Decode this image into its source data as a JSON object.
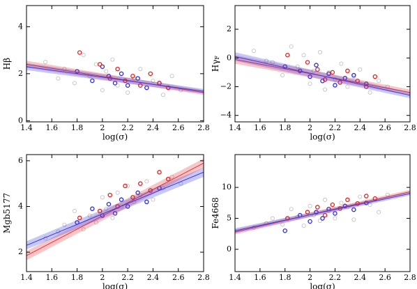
{
  "chart_data": [
    {
      "type": "scatter",
      "ylabel": "Hβ",
      "xlabel": "log(σ)",
      "xlim": [
        1.4,
        2.8
      ],
      "xticks": [
        1.4,
        1.6,
        1.8,
        2.0,
        2.2,
        2.4,
        2.6,
        2.8
      ],
      "ylim": [
        -0.05,
        4.9
      ],
      "yticks": [
        0,
        2,
        4
      ],
      "series": [
        {
          "color": "#bdbdbd",
          "x": [
            1.55,
            1.7,
            1.78,
            1.85,
            1.9,
            1.95,
            2.0,
            2.03,
            2.08,
            2.12,
            2.15,
            2.2,
            2.25,
            2.3,
            2.35,
            2.4,
            2.48,
            2.55,
            2.62,
            1.65
          ],
          "values": [
            2.5,
            2.2,
            1.6,
            2.8,
            1.9,
            2.4,
            1.3,
            2.1,
            2.6,
            1.5,
            2.0,
            1.2,
            1.8,
            2.2,
            1.4,
            1.7,
            1.1,
            1.9,
            1.3,
            1.8
          ]
        },
        {
          "color": "#2a2ae0",
          "x": [
            1.8,
            1.92,
            2.0,
            2.05,
            2.1,
            2.15,
            2.2,
            2.28,
            2.35,
            2.45
          ],
          "values": [
            2.1,
            1.7,
            2.3,
            1.9,
            1.6,
            2.0,
            1.5,
            1.8,
            1.4,
            1.6
          ]
        },
        {
          "color": "#ee1c1c",
          "x": [
            1.82,
            1.98,
            2.06,
            2.12,
            2.18,
            2.24,
            2.3,
            2.38,
            2.45,
            2.52
          ],
          "values": [
            2.9,
            2.4,
            1.8,
            2.2,
            1.7,
            1.9,
            1.5,
            2.0,
            1.6,
            1.4
          ]
        }
      ],
      "fits": [
        {
          "color": "#e8333a",
          "x": [
            1.4,
            2.8
          ],
          "values": [
            2.4,
            1.2
          ],
          "lower": [
            2.25,
            1.1
          ],
          "upper": [
            2.55,
            1.3
          ]
        },
        {
          "color": "#3a3ae0",
          "x": [
            1.4,
            2.8
          ],
          "values": [
            2.3,
            1.25
          ],
          "lower": [
            2.15,
            1.15
          ],
          "upper": [
            2.45,
            1.35
          ]
        }
      ]
    },
    {
      "type": "scatter",
      "ylabel": "Hγ",
      "ylabel_subscript": "F",
      "xlabel": "log(σ)",
      "xlim": [
        1.4,
        2.8
      ],
      "xticks": [
        1.4,
        1.6,
        1.8,
        2.0,
        2.2,
        2.4,
        2.6,
        2.8
      ],
      "ylim": [
        -4.45,
        3.65
      ],
      "yticks": [
        {
          "value": -4,
          "label": "−4"
        },
        {
          "value": -2,
          "label": "−2"
        },
        0,
        2
      ],
      "series": [
        {
          "color": "#bdbdbd",
          "x": [
            1.55,
            1.7,
            1.78,
            1.85,
            1.9,
            1.95,
            2.0,
            2.03,
            2.08,
            2.12,
            2.15,
            2.2,
            2.25,
            2.3,
            2.35,
            2.4,
            2.48,
            2.55,
            2.62,
            1.65
          ],
          "values": [
            0.5,
            -0.3,
            -1.2,
            0.8,
            -0.6,
            0.2,
            -1.8,
            -0.9,
            0.4,
            -2.2,
            -1.0,
            -1.5,
            -0.4,
            -2.0,
            -1.3,
            -0.8,
            -2.4,
            -1.6,
            -2.0,
            -0.2
          ]
        },
        {
          "color": "#2a2ae0",
          "x": [
            1.8,
            1.92,
            2.0,
            2.05,
            2.1,
            2.15,
            2.2,
            2.28,
            2.35,
            2.45
          ],
          "values": [
            -0.6,
            -0.9,
            -1.3,
            -0.5,
            -1.6,
            -1.1,
            -1.9,
            -1.4,
            -1.2,
            -1.8
          ]
        },
        {
          "color": "#ee1c1c",
          "x": [
            1.82,
            1.98,
            2.06,
            2.12,
            2.18,
            2.24,
            2.3,
            2.38,
            2.45,
            2.52
          ],
          "values": [
            0.2,
            -0.3,
            -0.8,
            -1.5,
            -1.0,
            -1.7,
            -0.9,
            -1.6,
            -2.0,
            -1.3
          ]
        }
      ],
      "fits": [
        {
          "color": "#e8333a",
          "x": [
            1.4,
            2.8
          ],
          "values": [
            -0.1,
            -2.4
          ],
          "lower": [
            -0.4,
            -2.6
          ],
          "upper": [
            0.2,
            -2.2
          ]
        },
        {
          "color": "#3a3ae0",
          "x": [
            1.4,
            2.8
          ],
          "values": [
            0.1,
            -2.6
          ],
          "lower": [
            -0.2,
            -2.8
          ],
          "upper": [
            0.4,
            -2.4
          ]
        }
      ]
    },
    {
      "type": "scatter",
      "ylabel": "Mgb5177",
      "xlabel": "log(σ)",
      "xlim": [
        1.4,
        2.8
      ],
      "xticks": [
        1.4,
        1.6,
        1.8,
        2.0,
        2.2,
        2.4,
        2.6,
        2.8
      ],
      "ylim": [
        1.15,
        6.27
      ],
      "yticks": [
        2,
        4,
        6
      ],
      "series": [
        {
          "color": "#bdbdbd",
          "x": [
            1.55,
            1.7,
            1.78,
            1.85,
            1.9,
            1.95,
            2.0,
            2.03,
            2.08,
            2.12,
            2.15,
            2.2,
            2.25,
            2.3,
            2.35,
            2.4,
            2.48,
            2.55,
            2.62,
            1.65
          ],
          "values": [
            2.6,
            3.2,
            3.8,
            3.0,
            3.6,
            3.3,
            4.4,
            3.9,
            3.5,
            4.6,
            4.0,
            4.9,
            4.2,
            4.5,
            5.1,
            4.3,
            4.8,
            5.3,
            5.0,
            2.9
          ]
        },
        {
          "color": "#2a2ae0",
          "x": [
            1.8,
            1.92,
            2.0,
            2.05,
            2.1,
            2.15,
            2.2,
            2.28,
            2.35,
            2.45
          ],
          "values": [
            3.3,
            3.9,
            3.6,
            4.1,
            3.7,
            4.3,
            4.0,
            4.6,
            4.2,
            4.8
          ]
        },
        {
          "color": "#ee1c1c",
          "x": [
            1.82,
            1.98,
            2.06,
            2.12,
            2.18,
            2.24,
            2.3,
            2.38,
            2.45,
            2.52
          ],
          "values": [
            3.5,
            3.8,
            4.5,
            4.0,
            4.9,
            4.4,
            5.0,
            4.7,
            5.5,
            5.2
          ]
        }
      ],
      "fits": [
        {
          "color": "#e8333a",
          "x": [
            1.4,
            2.8
          ],
          "values": [
            1.85,
            5.9
          ],
          "lower": [
            1.65,
            5.7
          ],
          "upper": [
            2.05,
            6.1
          ]
        },
        {
          "color": "#3a3ae0",
          "x": [
            1.4,
            2.8
          ],
          "values": [
            2.3,
            5.5
          ],
          "lower": [
            2.12,
            5.3
          ],
          "upper": [
            2.48,
            5.7
          ]
        }
      ]
    },
    {
      "type": "scatter",
      "ylabel": "Fe4668",
      "xlabel": "log(σ)",
      "xlim": [
        1.4,
        2.8
      ],
      "xticks": [
        1.4,
        1.6,
        1.8,
        2.0,
        2.2,
        2.4,
        2.6,
        2.8
      ],
      "ylim": [
        -3.6,
        15.3
      ],
      "yticks": [
        0,
        5,
        10
      ],
      "series": [
        {
          "color": "#bdbdbd",
          "x": [
            1.55,
            1.7,
            1.78,
            1.85,
            1.9,
            1.95,
            2.0,
            2.03,
            2.08,
            2.12,
            2.15,
            2.2,
            2.25,
            2.3,
            2.35,
            2.4,
            2.48,
            2.55,
            2.62,
            1.65
          ],
          "values": [
            3.5,
            5.0,
            4.0,
            6.5,
            5.2,
            3.8,
            7.0,
            5.5,
            4.6,
            8.0,
            6.2,
            5.0,
            7.5,
            6.8,
            4.8,
            8.5,
            7.2,
            6.0,
            8.8,
            4.2
          ]
        },
        {
          "color": "#2a2ae0",
          "x": [
            1.8,
            1.92,
            2.0,
            2.05,
            2.1,
            2.15,
            2.2,
            2.28,
            2.35,
            2.45
          ],
          "values": [
            3.0,
            5.5,
            4.5,
            6.0,
            5.0,
            6.5,
            5.8,
            7.0,
            6.4,
            7.5
          ]
        },
        {
          "color": "#ee1c1c",
          "x": [
            1.82,
            1.98,
            2.06,
            2.12,
            2.18,
            2.24,
            2.3,
            2.38,
            2.45,
            2.52
          ],
          "values": [
            5.0,
            6.0,
            6.8,
            5.5,
            7.2,
            6.6,
            8.0,
            7.4,
            8.6,
            8.2
          ]
        }
      ],
      "fits": [
        {
          "color": "#e8333a",
          "x": [
            1.4,
            2.8
          ],
          "values": [
            2.8,
            9.3
          ],
          "lower": [
            2.4,
            9.0
          ],
          "upper": [
            3.2,
            9.6
          ]
        },
        {
          "color": "#3a3ae0",
          "x": [
            1.4,
            2.8
          ],
          "values": [
            3.0,
            9.0
          ],
          "lower": [
            2.6,
            8.7
          ],
          "upper": [
            3.4,
            9.3
          ]
        }
      ]
    }
  ]
}
